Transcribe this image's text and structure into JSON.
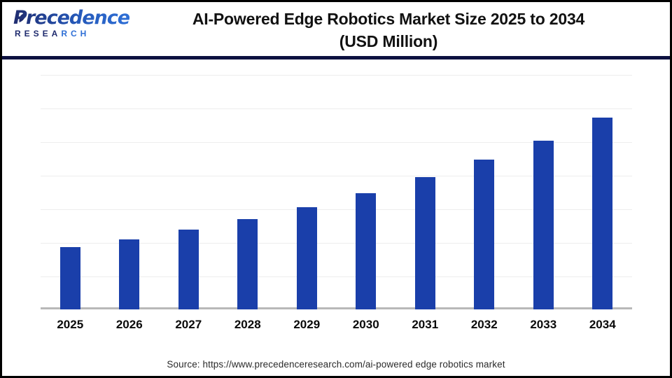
{
  "header": {
    "logo": {
      "brand_word": "Precedence",
      "brand_sub_left": "RESEA",
      "brand_sub_right": "RCH"
    },
    "title_line1": "AI-Powered Edge Robotics Market Size 2025 to 2034",
    "title_line2": "(USD Million)"
  },
  "footer": {
    "source_text": "Source: https://www.precedenceresearch.com/ai-powered edge robotics market"
  },
  "colors": {
    "bar": "#1A3FAA",
    "header_rule": "#0D1140",
    "gridline": "#EDEDED",
    "baseline": "#B8B8B8",
    "logo_navy": "#1F2B6E",
    "logo_blue": "#2E6FD6",
    "title": "#111111"
  },
  "chart_data": {
    "type": "bar",
    "title": "AI-Powered Edge Robotics Market Size 2025 to 2034 (USD Million)",
    "categories": [
      "2025",
      "2026",
      "2027",
      "2028",
      "2029",
      "2030",
      "2031",
      "2032",
      "2033",
      "2034"
    ],
    "values": [
      32.5,
      36.5,
      41.6,
      47.1,
      53.3,
      60.6,
      69.0,
      78.1,
      88.0,
      100
    ],
    "value_note": "No numeric y-axis labels are shown in the image; values are relative bar heights normalized so 2034 = 100 (implied ~13% year-over-year growth).",
    "xlabel": "",
    "ylabel": "",
    "legend": "none",
    "grid": "7 light horizontal gridlines, no y-axis tick labels, gray baseline under bars",
    "bar_color": "#1A3FAA"
  }
}
